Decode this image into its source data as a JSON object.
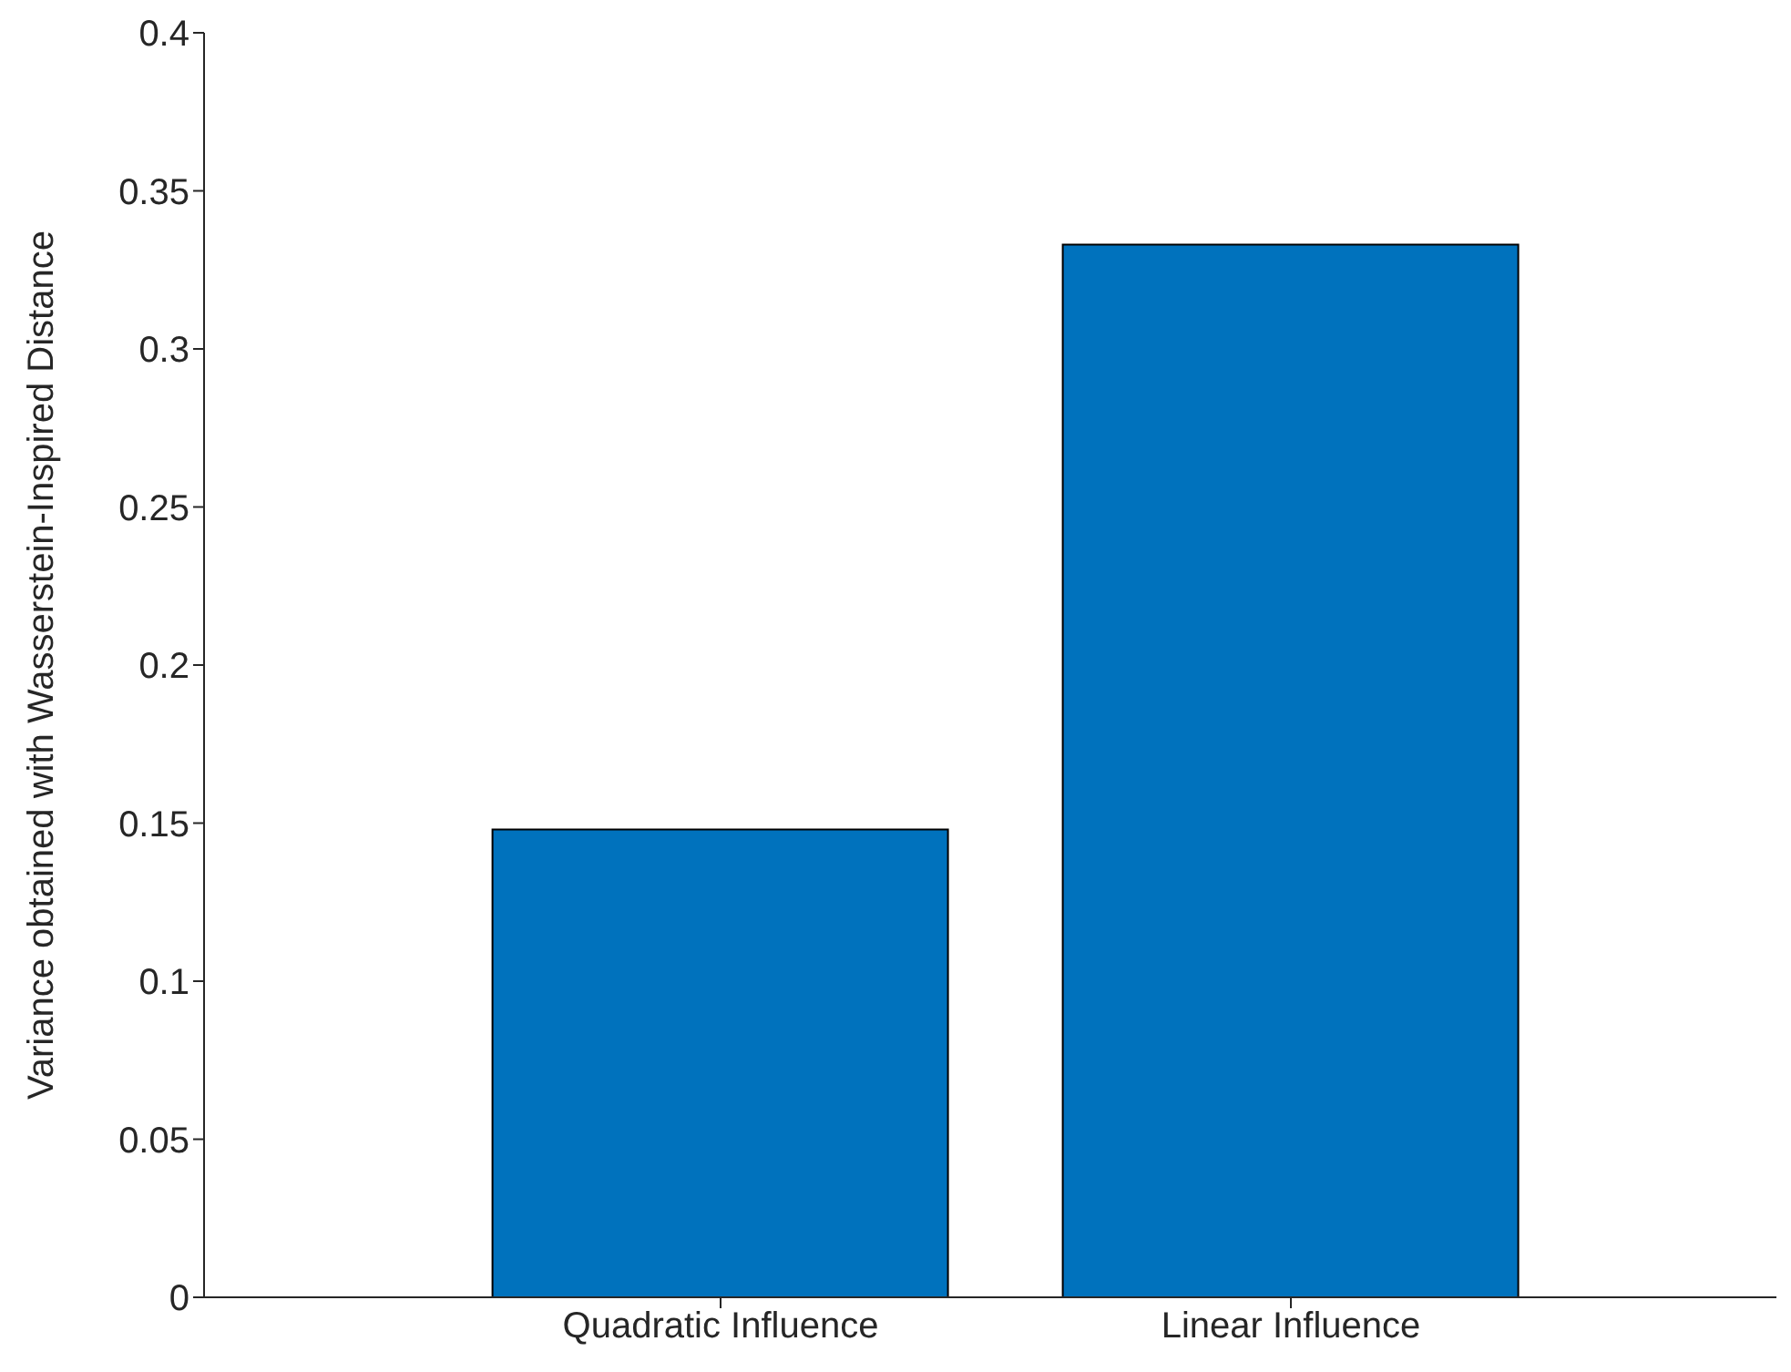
{
  "chart_data": {
    "type": "bar",
    "ylabel": "Variance obtained with Wasserstein-Inspired Distance",
    "categories": [
      "Quadratic Influence",
      "Linear Influence"
    ],
    "values": [
      0.148,
      0.333
    ],
    "color": "#0072bd",
    "ylim": [
      0,
      0.4
    ],
    "yticks": [
      0,
      0.05,
      0.1,
      0.15,
      0.2,
      0.25,
      0.3,
      0.35,
      0.4
    ],
    "grid": false,
    "legend": false
  }
}
